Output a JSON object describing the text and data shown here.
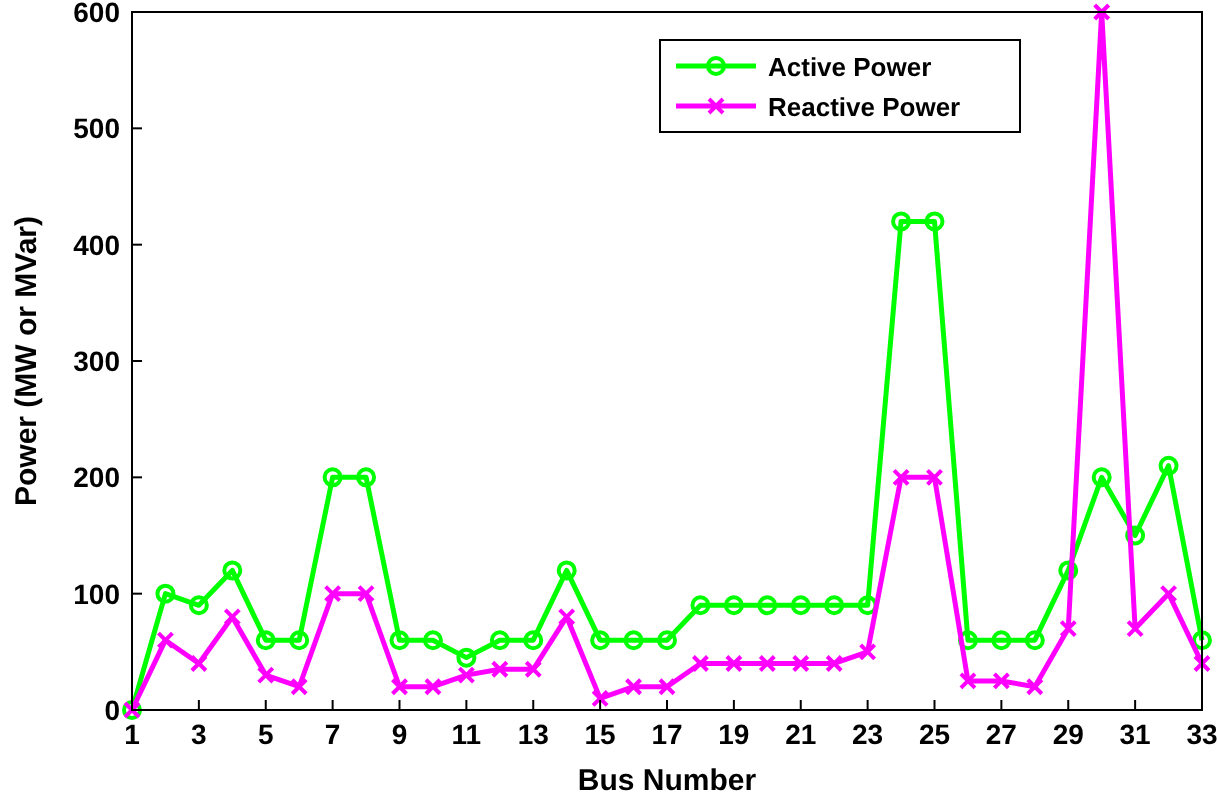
{
  "chart_data": {
    "type": "line",
    "xlabel": "Bus Number",
    "ylabel": "Power (MW or MVar)",
    "x": [
      1,
      2,
      3,
      4,
      5,
      6,
      7,
      8,
      9,
      10,
      11,
      12,
      13,
      14,
      15,
      16,
      17,
      18,
      19,
      20,
      21,
      22,
      23,
      24,
      25,
      26,
      27,
      28,
      29,
      30,
      31,
      32,
      33
    ],
    "xlim": [
      1,
      33
    ],
    "xticks": [
      1,
      3,
      5,
      7,
      9,
      11,
      13,
      15,
      17,
      19,
      21,
      23,
      25,
      27,
      29,
      31,
      33
    ],
    "ylim": [
      0,
      600
    ],
    "yticks": [
      0,
      100,
      200,
      300,
      400,
      500,
      600
    ],
    "grid": false,
    "legend": "top right",
    "series": [
      {
        "name": "Active Power",
        "color": "#00ff00",
        "marker": "circle",
        "values": [
          0,
          100,
          90,
          120,
          60,
          60,
          200,
          200,
          60,
          60,
          45,
          60,
          60,
          120,
          60,
          60,
          60,
          90,
          90,
          90,
          90,
          90,
          90,
          420,
          420,
          60,
          60,
          60,
          120,
          200,
          150,
          210,
          60
        ]
      },
      {
        "name": "Reactive Power",
        "color": "#ff00ff",
        "marker": "cross",
        "values": [
          0,
          60,
          40,
          80,
          30,
          20,
          100,
          100,
          20,
          20,
          30,
          35,
          35,
          80,
          10,
          20,
          20,
          40,
          40,
          40,
          40,
          40,
          50,
          200,
          200,
          25,
          25,
          20,
          70,
          600,
          70,
          100,
          40
        ]
      }
    ]
  }
}
